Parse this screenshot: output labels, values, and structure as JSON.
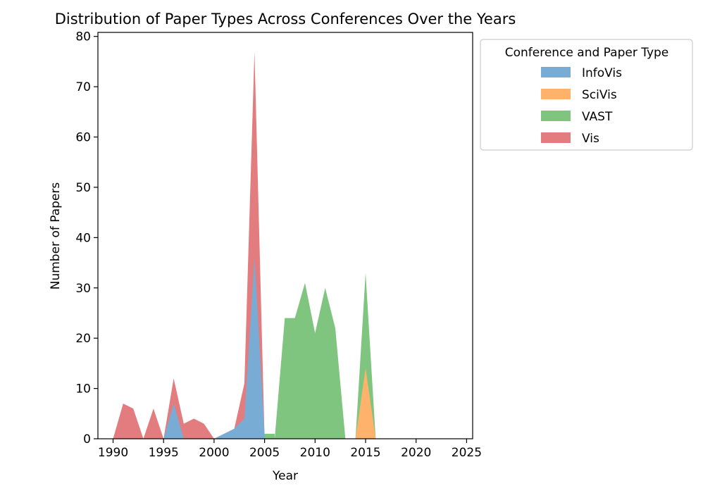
{
  "chart_data": {
    "type": "area",
    "title": "Distribution of Paper Types Across Conferences Over the Years",
    "xlabel": "Year",
    "ylabel": "Number of Papers",
    "xlim": [
      1988.5,
      2025.6
    ],
    "ylim": [
      0,
      80.8
    ],
    "xticks": [
      1990,
      1995,
      2000,
      2005,
      2010,
      2015,
      2020,
      2025
    ],
    "yticks": [
      0,
      10,
      20,
      30,
      40,
      50,
      60,
      70,
      80
    ],
    "grid": false,
    "legend": {
      "title": "Conference and Paper Type",
      "placement": "outside-right-top"
    },
    "series": [
      {
        "name": "Vis",
        "color": "#e37c7e",
        "points": [
          [
            1990,
            0
          ],
          [
            1991,
            7
          ],
          [
            1992,
            6
          ],
          [
            1993,
            0
          ],
          [
            1994,
            6
          ],
          [
            1995,
            0
          ],
          [
            1996,
            12
          ],
          [
            1997,
            3
          ],
          [
            1998,
            4
          ],
          [
            1999,
            3
          ],
          [
            2000,
            0
          ],
          [
            2001,
            1
          ],
          [
            2002,
            2
          ],
          [
            2003,
            11
          ],
          [
            2004,
            77
          ],
          [
            2005,
            0
          ]
        ]
      },
      {
        "name": "InfoVis",
        "color": "#78acd4",
        "points": [
          [
            1995,
            0
          ],
          [
            1996,
            7
          ],
          [
            1997,
            0
          ],
          [
            2000,
            0
          ],
          [
            2001,
            1
          ],
          [
            2002,
            2
          ],
          [
            2003,
            4
          ],
          [
            2004,
            36
          ],
          [
            2005,
            1
          ],
          [
            2006,
            0
          ]
        ]
      },
      {
        "name": "VAST",
        "color": "#80c57f",
        "points": [
          [
            2005,
            1
          ],
          [
            2006,
            1
          ],
          [
            2006,
            0
          ],
          [
            2007,
            24
          ],
          [
            2008,
            24
          ],
          [
            2009,
            31
          ],
          [
            2010,
            21
          ],
          [
            2011,
            30
          ],
          [
            2012,
            22
          ],
          [
            2013,
            0
          ],
          [
            2014,
            0
          ],
          [
            2015,
            33
          ],
          [
            2016,
            0
          ]
        ]
      },
      {
        "name": "SciVis",
        "color": "#feb26c",
        "points": [
          [
            2014,
            0
          ],
          [
            2015,
            14
          ],
          [
            2016,
            0
          ]
        ]
      }
    ],
    "legend_order": [
      "InfoVis",
      "SciVis",
      "VAST",
      "Vis"
    ]
  }
}
